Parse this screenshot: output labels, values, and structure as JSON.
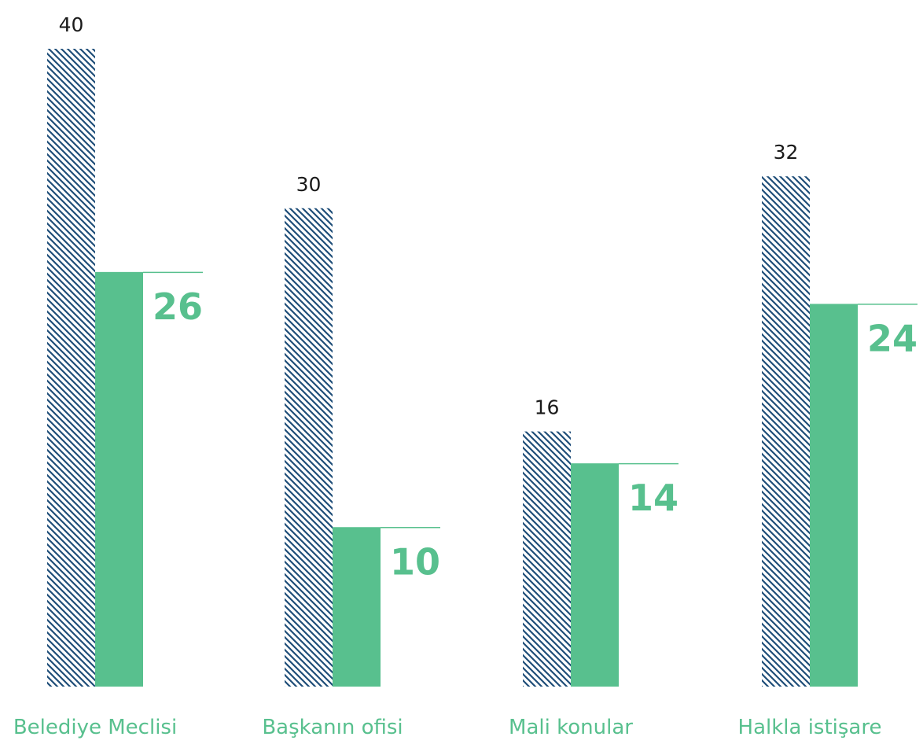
{
  "chart_data": {
    "type": "bar",
    "categories": [
      "Belediye Meclisi",
      "Başkanın ofisi",
      "Mali konular",
      "Halkla istişare"
    ],
    "series": [
      {
        "values": [
          40,
          30,
          16,
          32
        ]
      },
      {
        "values": [
          26,
          10,
          14,
          24
        ]
      }
    ],
    "ylim": [
      0,
      40
    ],
    "grid": false,
    "legend": "none",
    "colors": {
      "hatch": "#1f4e79",
      "bar": "#58c08e",
      "category_text": "#58c08e",
      "value_text": "#1a1a1a"
    }
  }
}
